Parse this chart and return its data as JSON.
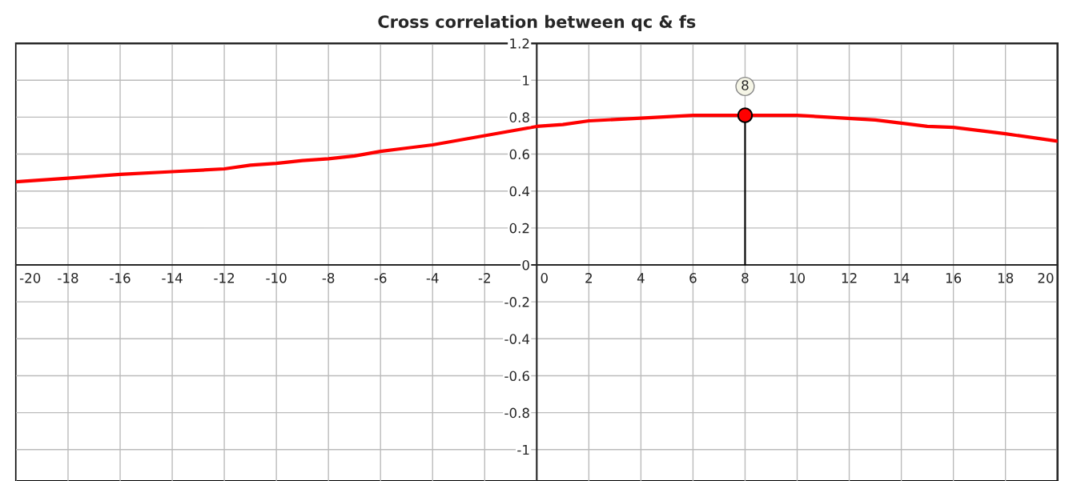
{
  "chart_data": {
    "type": "line",
    "title": "Cross correlation between qc & fs",
    "x": [
      -20,
      -18,
      -16,
      -14,
      -12,
      -11,
      -10,
      -9,
      -8,
      -7,
      -6,
      -4,
      -2,
      0,
      1,
      2,
      4,
      6,
      8,
      10,
      13,
      15,
      16,
      18,
      20
    ],
    "series": [
      {
        "color": "#ff0000",
        "values": [
          0.45,
          0.47,
          0.49,
          0.505,
          0.52,
          0.54,
          0.55,
          0.565,
          0.575,
          0.59,
          0.615,
          0.65,
          0.7,
          0.75,
          0.76,
          0.78,
          0.795,
          0.81,
          0.81,
          0.81,
          0.785,
          0.75,
          0.745,
          0.71,
          0.67
        ]
      },
      {
        "type": "lollipop",
        "marker": "circle",
        "color": "#ff0000",
        "x": [
          8
        ],
        "values": [
          0.81
        ]
      }
    ],
    "annotations": [
      {
        "text": "8",
        "x": 8,
        "y": 0.81
      }
    ],
    "xlim": [
      -20,
      20
    ],
    "ylim": [
      -1.17,
      1.2
    ],
    "xticks": [
      -20,
      -18,
      -16,
      -14,
      -12,
      -10,
      -8,
      -6,
      -4,
      -2,
      0,
      2,
      4,
      6,
      8,
      10,
      12,
      14,
      16,
      18,
      20
    ],
    "yticks": [
      -1,
      -0.8,
      -0.6,
      -0.4,
      -0.2,
      0,
      0.2,
      0.4,
      0.6,
      0.8,
      1,
      1.2
    ],
    "grid": true,
    "marker": "none",
    "line_style": "solid"
  }
}
